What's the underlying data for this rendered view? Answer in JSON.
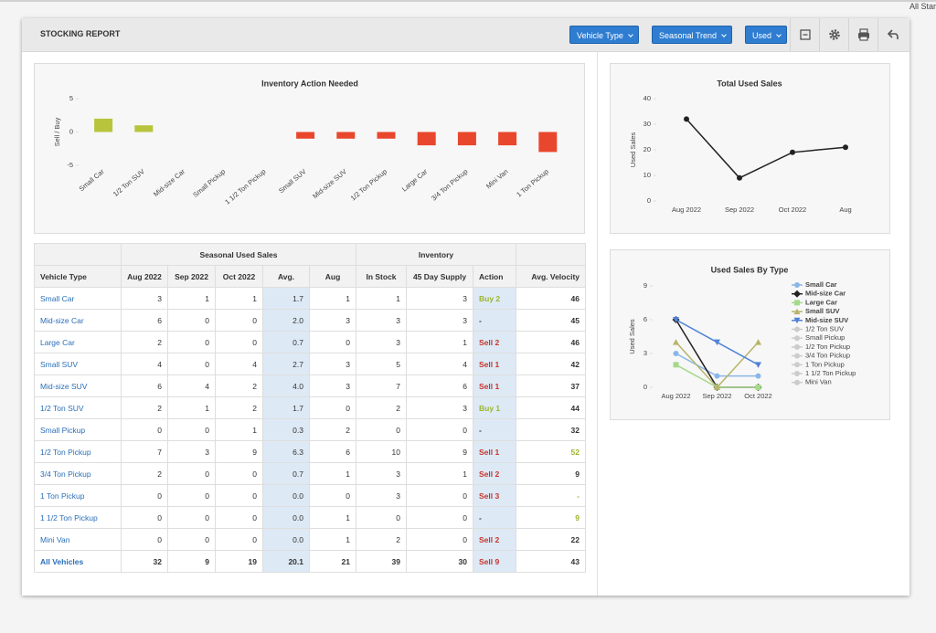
{
  "header": {
    "corner_text": "All Star F",
    "title": "STOCKING REPORT",
    "buttons": [
      "Vehicle Type",
      "Seasonal Trend",
      "Used"
    ]
  },
  "chart_data": [
    {
      "type": "bar",
      "title": "Inventory Action Needed",
      "ylabel": "Sell / Buy",
      "categories": [
        "Small Car",
        "1/2 Ton SUV",
        "Mid-size Car",
        "Small Pickup",
        "1 1/2 Ton Pickup",
        "Small SUV",
        "Mid-size SUV",
        "1/2 Ton Pickup",
        "Large Car",
        "3/4 Ton Pickup",
        "Mini Van",
        "1 Ton Pickup"
      ],
      "values": [
        2,
        1,
        0,
        0,
        0,
        -1,
        -1,
        -1,
        -2,
        -2,
        -2,
        -3
      ],
      "positive_color": "#b8c43c",
      "negative_color": "#e9472d",
      "ylim": [
        -5,
        5
      ],
      "yticks": [
        5,
        0,
        -5
      ]
    },
    {
      "type": "line",
      "title": "Total Used Sales",
      "ylabel": "Used Sales",
      "categories": [
        "Aug 2022",
        "Sep 2022",
        "Oct 2022",
        "Aug"
      ],
      "series": [
        {
          "color": "#222222",
          "marker": "circle",
          "values": [
            32,
            9,
            19,
            21
          ]
        }
      ],
      "ylim": [
        0,
        40
      ],
      "yticks": [
        0,
        10,
        20,
        30,
        40
      ]
    },
    {
      "type": "line",
      "title": "Used Sales By Type",
      "ylabel": "Used Sales",
      "categories": [
        "Aug 2022",
        "Sep 2022",
        "Oct 2022"
      ],
      "series": [
        {
          "name": "Small Car",
          "color": "#8ab6e6",
          "marker": "circle",
          "visible": true,
          "values": [
            3,
            1,
            1
          ]
        },
        {
          "name": "Mid-size Car",
          "color": "#222222",
          "marker": "diamond",
          "visible": true,
          "values": [
            6,
            0,
            0
          ]
        },
        {
          "name": "Large Car",
          "color": "#a6d98a",
          "marker": "square",
          "visible": true,
          "values": [
            2,
            0,
            0
          ]
        },
        {
          "name": "Small SUV",
          "color": "#b7b46a",
          "marker": "triangle",
          "visible": true,
          "values": [
            4,
            0,
            4
          ]
        },
        {
          "name": "Mid-size SUV",
          "color": "#4f82d6",
          "marker": "triangle-down",
          "visible": true,
          "values": [
            6,
            4,
            2
          ]
        },
        {
          "name": "1/2 Ton SUV",
          "color": "#cccccc",
          "marker": "circle",
          "visible": false
        },
        {
          "name": "Small Pickup",
          "color": "#cccccc",
          "marker": "circle",
          "visible": false
        },
        {
          "name": "1/2 Ton Pickup",
          "color": "#cccccc",
          "marker": "circle",
          "visible": false
        },
        {
          "name": "3/4 Ton Pickup",
          "color": "#cccccc",
          "marker": "circle",
          "visible": false
        },
        {
          "name": "1 Ton Pickup",
          "color": "#cccccc",
          "marker": "circle",
          "visible": false
        },
        {
          "name": "1 1/2 Ton Pickup",
          "color": "#cccccc",
          "marker": "circle",
          "visible": false
        },
        {
          "name": "Mini Van",
          "color": "#cccccc",
          "marker": "circle",
          "visible": false
        }
      ],
      "ylim": [
        0,
        9
      ],
      "yticks": [
        0,
        3,
        6,
        9
      ]
    }
  ],
  "table": {
    "group_headers": [
      "Seasonal Used Sales",
      "Inventory"
    ],
    "columns": [
      "Vehicle Type",
      "Aug 2022",
      "Sep 2022",
      "Oct 2022",
      "Avg.",
      "Aug",
      "In Stock",
      "45 Day Supply",
      "Action",
      "Avg. Velocity"
    ],
    "rows": [
      [
        "Small Car",
        "3",
        "1",
        "1",
        "1.7",
        "1",
        "1",
        "3",
        "Buy 2",
        "46"
      ],
      [
        "Mid-size Car",
        "6",
        "0",
        "0",
        "2.0",
        "3",
        "3",
        "3",
        "-",
        "45"
      ],
      [
        "Large Car",
        "2",
        "0",
        "0",
        "0.7",
        "0",
        "3",
        "1",
        "Sell 2",
        "46"
      ],
      [
        "Small SUV",
        "4",
        "0",
        "4",
        "2.7",
        "3",
        "5",
        "4",
        "Sell 1",
        "42"
      ],
      [
        "Mid-size SUV",
        "6",
        "4",
        "2",
        "4.0",
        "3",
        "7",
        "6",
        "Sell 1",
        "37"
      ],
      [
        "1/2 Ton SUV",
        "2",
        "1",
        "2",
        "1.7",
        "0",
        "2",
        "3",
        "Buy 1",
        "44"
      ],
      [
        "Small Pickup",
        "0",
        "0",
        "1",
        "0.3",
        "2",
        "0",
        "0",
        "-",
        "32"
      ],
      [
        "1/2 Ton Pickup",
        "7",
        "3",
        "9",
        "6.3",
        "6",
        "10",
        "9",
        "Sell 1",
        "52"
      ],
      [
        "3/4 Ton Pickup",
        "2",
        "0",
        "0",
        "0.7",
        "1",
        "3",
        "1",
        "Sell 2",
        "9"
      ],
      [
        "1 Ton Pickup",
        "0",
        "0",
        "0",
        "0.0",
        "0",
        "3",
        "0",
        "Sell 3",
        "-"
      ],
      [
        "1 1/2 Ton Pickup",
        "0",
        "0",
        "0",
        "0.0",
        "1",
        "0",
        "0",
        "-",
        "9"
      ],
      [
        "Mini Van",
        "0",
        "0",
        "0",
        "0.0",
        "1",
        "2",
        "0",
        "Sell 2",
        "22"
      ],
      [
        "All Vehicles",
        "32",
        "9",
        "19",
        "20.1",
        "21",
        "39",
        "30",
        "Sell 9",
        "43"
      ]
    ]
  }
}
